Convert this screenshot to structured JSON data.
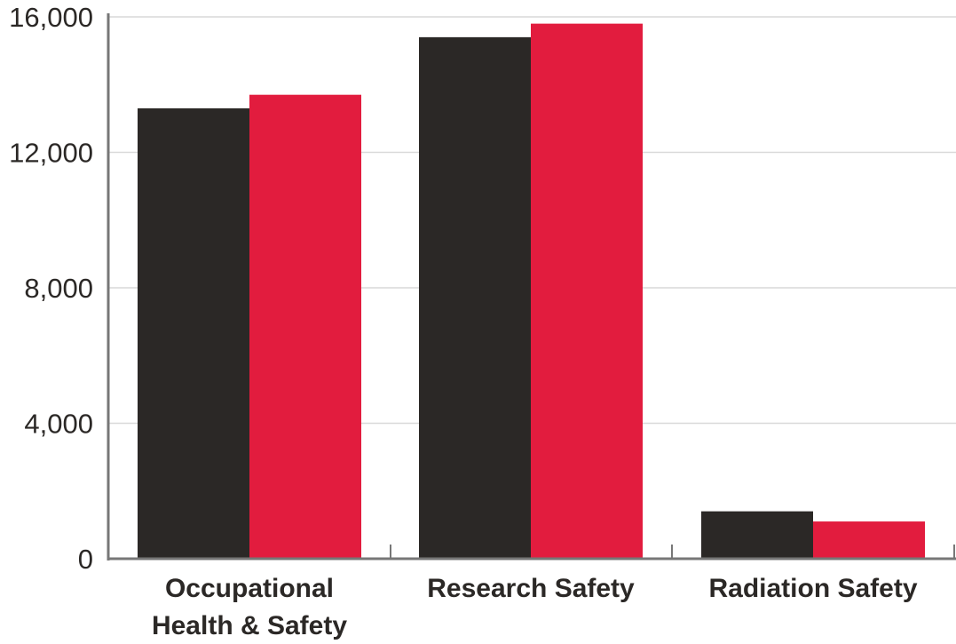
{
  "chart_data": {
    "type": "bar",
    "title": "",
    "xlabel": "",
    "ylabel": "",
    "categories": [
      [
        "Occupational",
        "Health & Safety"
      ],
      [
        "Research Safety"
      ],
      [
        "Radiation Safety"
      ]
    ],
    "series": [
      {
        "color": "#2b2826",
        "values": [
          13300,
          15400,
          1400
        ]
      },
      {
        "color": "#e21c3e",
        "values": [
          13700,
          15800,
          1100
        ]
      }
    ],
    "ylim": [
      0,
      16000
    ],
    "yticks": [
      0,
      4000,
      8000,
      12000,
      16000
    ],
    "ytick_labels": [
      "0",
      "4,000",
      "8,000",
      "12,000",
      "16,000"
    ],
    "grid": true,
    "legend": "none"
  }
}
